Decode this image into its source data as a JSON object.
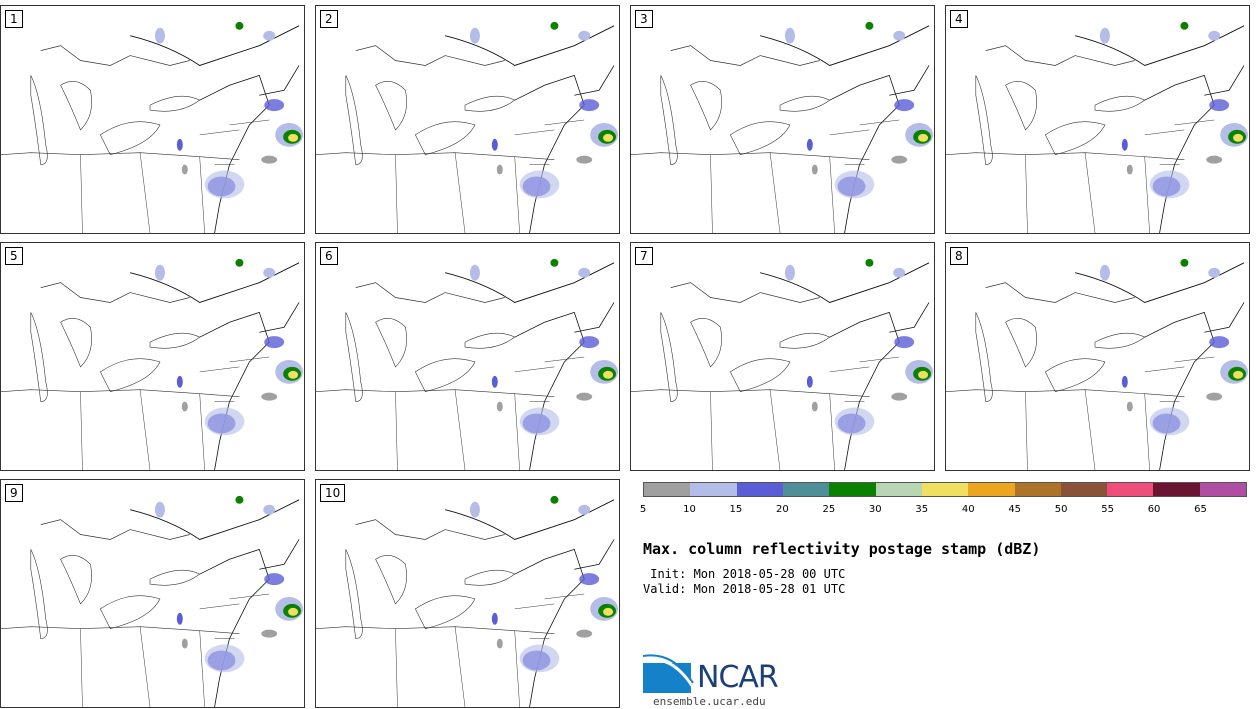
{
  "panels": [
    {
      "label": "1"
    },
    {
      "label": "2"
    },
    {
      "label": "3"
    },
    {
      "label": "4"
    },
    {
      "label": "5"
    },
    {
      "label": "6"
    },
    {
      "label": "7"
    },
    {
      "label": "8"
    },
    {
      "label": "9"
    },
    {
      "label": "10"
    }
  ],
  "colorbar": {
    "ticks": [
      "5",
      "10",
      "15",
      "20",
      "25",
      "30",
      "35",
      "40",
      "45",
      "50",
      "55",
      "60",
      "65"
    ],
    "colors": [
      "#a0a0a0",
      "#b4bce8",
      "#5a5ed6",
      "#4f8f98",
      "#0a8200",
      "#b7d7b2",
      "#efe061",
      "#eba51f",
      "#ad7328",
      "#8a5237",
      "#ef4d7a",
      "#6b1533",
      "#b04ea4"
    ]
  },
  "title": "Max. column reflectivity postage stamp (dBZ)",
  "init": " Init: Mon 2018-05-28 00 UTC",
  "valid": "Valid: Mon 2018-05-28 01 UTC",
  "logo": {
    "text": "NCAR",
    "site": "ensemble.ucar.edu"
  }
}
